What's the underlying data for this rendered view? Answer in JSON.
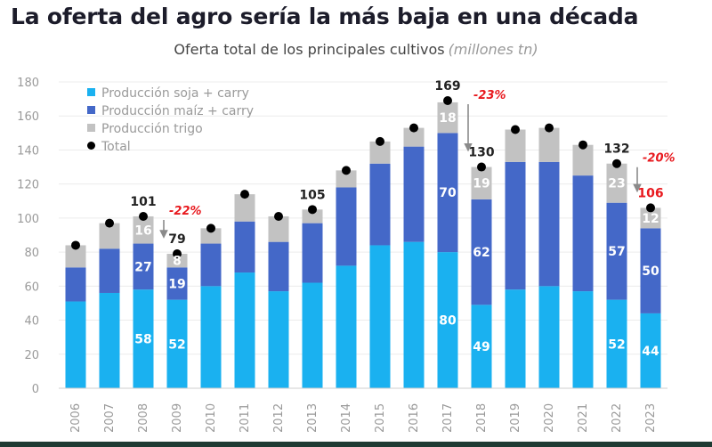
{
  "header": {
    "title": "La oferta del agro sería la más baja en una década",
    "subtitle": "Oferta total de los principales cultivos",
    "subtitle_unit": "(millones tn)"
  },
  "colors": {
    "soja": "#1ab1f0",
    "maiz": "#4468c8",
    "trigo": "#c2c2c2",
    "total_dot": "#000000",
    "change": "#e8191e",
    "axis_text": "#9a9a9a",
    "grid": "#ececec"
  },
  "chart_data": {
    "type": "bar",
    "stacked": true,
    "title": "La oferta del agro sería la más baja en una década",
    "subtitle": "Oferta total de los principales cultivos (millones tn)",
    "ylim": [
      0,
      180
    ],
    "yticks": [
      0,
      20,
      40,
      60,
      80,
      100,
      120,
      140,
      160,
      180
    ],
    "legend_position": "top-left",
    "categories": [
      "2006",
      "2007",
      "2008",
      "2009",
      "2010",
      "2011",
      "2012",
      "2013",
      "2014",
      "2015",
      "2016",
      "2017",
      "2018",
      "2019",
      "2020",
      "2021",
      "2022",
      "2023"
    ],
    "series": [
      {
        "name": "Producción soja + carry",
        "key": "soja",
        "values": [
          51,
          56,
          58,
          52,
          60,
          68,
          57,
          62,
          72,
          84,
          86,
          80,
          49,
          58,
          60,
          57,
          52,
          44
        ]
      },
      {
        "name": "Producción maíz + carry",
        "key": "maiz",
        "values": [
          20,
          26,
          27,
          19,
          25,
          30,
          29,
          35,
          46,
          48,
          56,
          70,
          62,
          75,
          73,
          68,
          57,
          50
        ]
      },
      {
        "name": "Producción trigo",
        "key": "trigo",
        "values": [
          13,
          15,
          16,
          8,
          9,
          16,
          15,
          8,
          10,
          13,
          11,
          18,
          19,
          19,
          20,
          18,
          23,
          12
        ]
      }
    ],
    "totals": [
      84,
      97,
      101,
      79,
      94,
      114,
      101,
      105,
      128,
      145,
      153,
      169,
      130,
      152,
      153,
      143,
      132,
      106
    ],
    "total_series_name": "Total",
    "segment_labels": {
      "2008": {
        "soja": "58",
        "maiz": "27",
        "trigo": "16"
      },
      "2009": {
        "soja": "52",
        "maiz": "19",
        "trigo": "8"
      },
      "2017": {
        "soja": "80",
        "maiz": "70",
        "trigo": "18"
      },
      "2018": {
        "soja": "49",
        "maiz": "62",
        "trigo": "19"
      },
      "2022": {
        "soja": "52",
        "maiz": "57",
        "trigo": "23"
      },
      "2023": {
        "soja": "44",
        "maiz": "50",
        "trigo": "12"
      }
    },
    "total_labels": [
      {
        "year": "2008",
        "text": "101"
      },
      {
        "year": "2009",
        "text": "79"
      },
      {
        "year": "2013",
        "text": "105"
      },
      {
        "year": "2017",
        "text": "169"
      },
      {
        "year": "2018",
        "text": "130"
      },
      {
        "year": "2022",
        "text": "132"
      },
      {
        "year": "2023",
        "text": "106",
        "highlight": true
      }
    ],
    "annotations": [
      {
        "from": "2008",
        "to": "2009",
        "text": "-22%"
      },
      {
        "from": "2017",
        "to": "2018",
        "text": "-23%"
      },
      {
        "from": "2022",
        "to": "2023",
        "text": "-20%"
      }
    ]
  }
}
